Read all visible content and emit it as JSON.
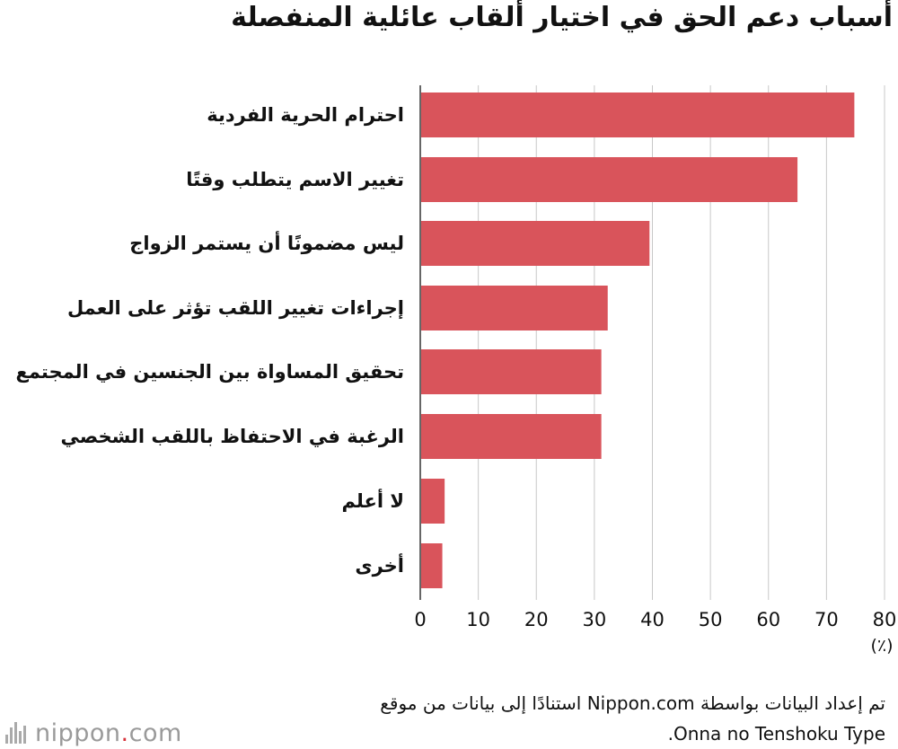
{
  "title": "أسباب دعم الحق في اختيار ألقاب عائلية المنفصلة",
  "chart_data": {
    "type": "bar",
    "orientation": "horizontal",
    "categories": [
      "احترام الحرية الفردية",
      "تغيير الاسم يتطلب وقتًا",
      "ليس مضمونًا أن يستمر الزواج",
      "إجراءات تغيير اللقب تؤثر على العمل",
      "تحقيق المساواة بين الجنسين في المجتمع",
      "الرغبة في الاحتفاظ باللقب الشخصي",
      "لا أعلم",
      "أخرى"
    ],
    "values": [
      74.8,
      65,
      39.5,
      32.3,
      31.2,
      31.2,
      4.2,
      3.8
    ],
    "xlim": [
      0,
      80
    ],
    "xticks": [
      0,
      10,
      20,
      30,
      40,
      50,
      60,
      70,
      80
    ],
    "unit": "(٪)",
    "grid": true,
    "bar_color": "#d9545b"
  },
  "source": {
    "line1": "تم إعداد البيانات بواسطة Nippon.com استنادًا إلى بيانات من موقع",
    "line2": "Onna no Tenshoku Type."
  },
  "logo": {
    "word": "nippon",
    "dot": ".",
    "tld": "com"
  }
}
